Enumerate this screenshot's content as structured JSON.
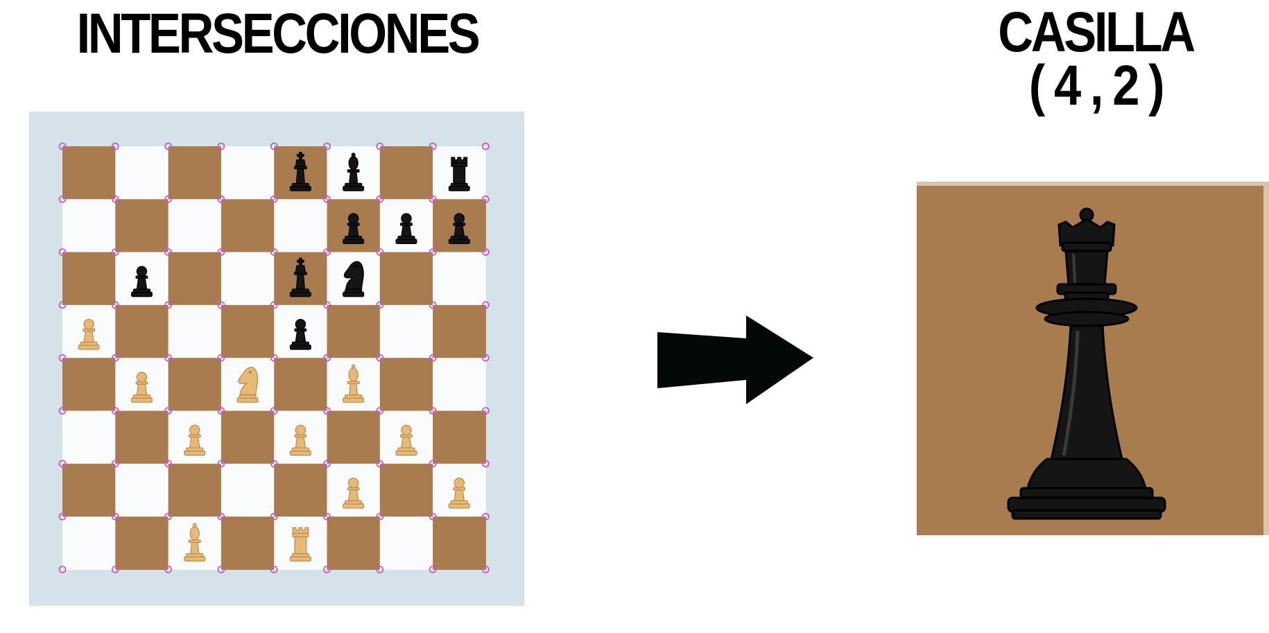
{
  "titles": {
    "left": "INTERSECCIONES",
    "right_line1": "CASILLA",
    "right_line2": "( 4 , 2 )"
  },
  "colors": {
    "frame": "#d6e2ea",
    "dark_square": "#a97c4f",
    "light_square": "#f9fbfd",
    "intersection_marker": "#c45cc0",
    "black_piece": "#151515",
    "white_piece": "#e6b978",
    "arrow": "#050808",
    "closeup_background": "#a97c4f",
    "closeup_border": "#d9c4a8"
  },
  "board": {
    "files": 8,
    "ranks": 8,
    "pieces_by_row": [
      [
        "",
        "",
        "",
        "",
        "bK",
        "bB",
        "",
        "bR"
      ],
      [
        "",
        "",
        "",
        "",
        "",
        "bP",
        "bP",
        "bP"
      ],
      [
        "",
        "bP",
        "",
        "",
        "bK",
        "bN",
        "",
        ""
      ],
      [
        "wP",
        "",
        "",
        "",
        "bP",
        "",
        "",
        ""
      ],
      [
        "",
        "wP",
        "",
        "wN",
        "",
        "wB",
        "",
        ""
      ],
      [
        "",
        "",
        "wP",
        "",
        "wP",
        "",
        "wP",
        ""
      ],
      [
        "",
        "",
        "",
        "",
        "",
        "wP",
        "",
        "wP"
      ],
      [
        "",
        "",
        "wB",
        "",
        "wR",
        "",
        "",
        ""
      ]
    ]
  },
  "closeup": {
    "piece": "bQ",
    "icon": "black-queen-icon"
  },
  "arrow_icon": "right-arrow-icon"
}
